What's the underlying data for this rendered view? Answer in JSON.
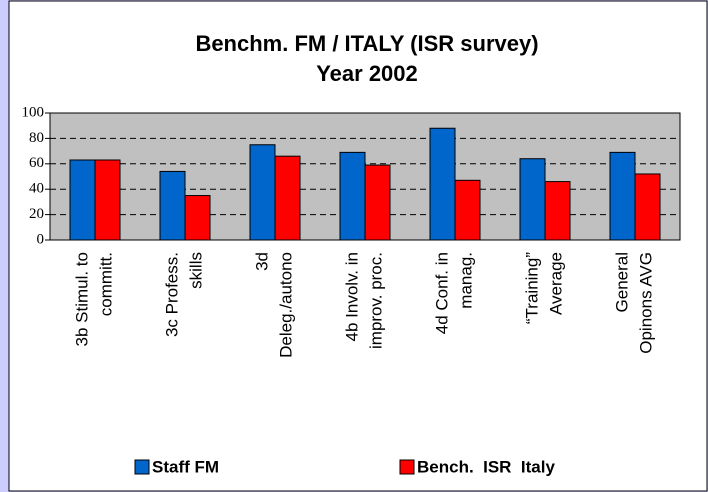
{
  "chart_data": {
    "type": "bar",
    "title": [
      "Benchm. FM / ITALY (ISR survey)",
      "Year 2002"
    ],
    "categories": [
      [
        "3b Stimul. to",
        "committ."
      ],
      [
        "3c Profess.",
        "skills"
      ],
      [
        "3d",
        "Deleg./autono"
      ],
      [
        "4b Involv. in",
        "improv. proc."
      ],
      [
        "4d Conf. in",
        "manag."
      ],
      [
        "“Training”",
        "Average"
      ],
      [
        "General",
        "Opinons AVG"
      ]
    ],
    "series": [
      {
        "name": "Staff FM",
        "color": "#0066cc",
        "values": [
          63,
          54,
          75,
          69,
          88,
          64,
          69
        ]
      },
      {
        "name": "Bench.  ISR  Italy",
        "color": "#ff0000",
        "values": [
          63,
          35,
          66,
          59,
          47,
          46,
          52
        ]
      }
    ],
    "ylim": [
      0,
      100
    ],
    "yticks": [
      0,
      20,
      40,
      60,
      80,
      100
    ],
    "grid": true
  }
}
